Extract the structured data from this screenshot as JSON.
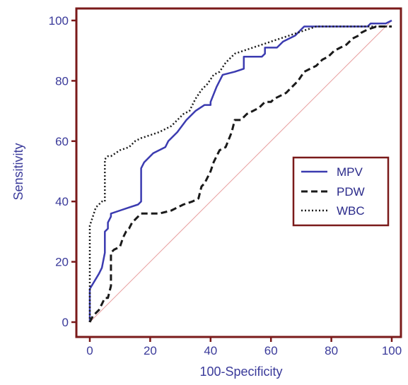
{
  "chart_data": {
    "type": "line",
    "title": "",
    "xlabel": "100-Specificity",
    "ylabel": "Sensitivity",
    "xlim": [
      0,
      100
    ],
    "ylim": [
      0,
      100
    ],
    "xticks": [
      "0",
      "20",
      "40",
      "60",
      "80",
      "100"
    ],
    "yticks": [
      "0",
      "20",
      "40",
      "60",
      "80",
      "100"
    ],
    "grid": false,
    "legend_position": "right",
    "frame_color": "#7a1a1a",
    "diagonal_color": "#e8a0a0",
    "series": [
      {
        "name": "MPV",
        "style": "solid",
        "color": "#3b3bb0",
        "x": [
          0,
          0,
          3,
          4,
          5,
          5,
          6,
          6,
          7,
          7,
          10,
          13,
          16,
          17,
          17,
          18,
          21,
          25,
          26,
          29,
          32,
          35,
          38,
          40,
          40,
          42,
          44,
          48,
          51,
          51,
          52,
          55,
          57,
          58,
          58,
          62,
          64,
          66,
          68,
          70,
          71,
          86,
          92,
          93,
          98,
          100
        ],
        "y": [
          0,
          11,
          16,
          18,
          23,
          30,
          31,
          33,
          35,
          36,
          37,
          38,
          39,
          40,
          51,
          53,
          56,
          58,
          60,
          63,
          67,
          70,
          72,
          72,
          73,
          78,
          82,
          83,
          84,
          88,
          88,
          88,
          88,
          89,
          91,
          91,
          93,
          94,
          95,
          97,
          98,
          98,
          98,
          99,
          99,
          100
        ]
      },
      {
        "name": "PDW",
        "style": "dashed",
        "color": "#1a1a1a",
        "x": [
          0,
          1,
          2,
          3,
          4,
          5,
          6,
          7,
          7,
          8,
          10,
          11,
          12,
          13,
          14,
          15,
          16,
          17,
          19,
          23,
          27,
          29,
          31,
          34,
          36,
          37,
          38,
          40,
          41,
          42,
          43,
          45,
          47,
          48,
          50,
          52,
          54,
          56,
          58,
          60,
          61,
          63,
          65,
          67,
          69,
          71,
          73,
          75,
          77,
          79,
          81,
          83,
          85,
          86,
          87,
          89,
          90,
          92,
          95,
          100
        ],
        "y": [
          0,
          2,
          3,
          4,
          6,
          8,
          8,
          12,
          23,
          24,
          25,
          28,
          30,
          31,
          33,
          34,
          35,
          36,
          36,
          36,
          37,
          38,
          39,
          40,
          41,
          45,
          46,
          50,
          53,
          55,
          57,
          58,
          63,
          67,
          67,
          69,
          70,
          71,
          73,
          73,
          74,
          75,
          76,
          78,
          80,
          83,
          84,
          85,
          87,
          88,
          90,
          91,
          92,
          93,
          94,
          95,
          96,
          97,
          98,
          98
        ]
      },
      {
        "name": "WBC",
        "style": "dotted",
        "color": "#1a1a1a",
        "x": [
          0,
          0,
          1,
          2,
          3,
          4,
          5,
          5,
          6,
          7,
          10,
          13,
          15,
          17,
          20,
          23,
          25,
          27,
          29,
          31,
          33,
          35,
          37,
          39,
          41,
          43,
          45,
          48,
          51,
          54,
          57,
          60,
          63,
          66,
          69,
          72,
          75,
          80,
          85,
          90,
          95,
          100
        ],
        "y": [
          0,
          32,
          35,
          38,
          39,
          40,
          40,
          54,
          55,
          55,
          57,
          58,
          60,
          61,
          62,
          63,
          64,
          65,
          67,
          69,
          70,
          74,
          77,
          79,
          82,
          83,
          86,
          89,
          90,
          91,
          92,
          93,
          94,
          95,
          96,
          97,
          98,
          98,
          98,
          98,
          98,
          98
        ]
      }
    ]
  }
}
